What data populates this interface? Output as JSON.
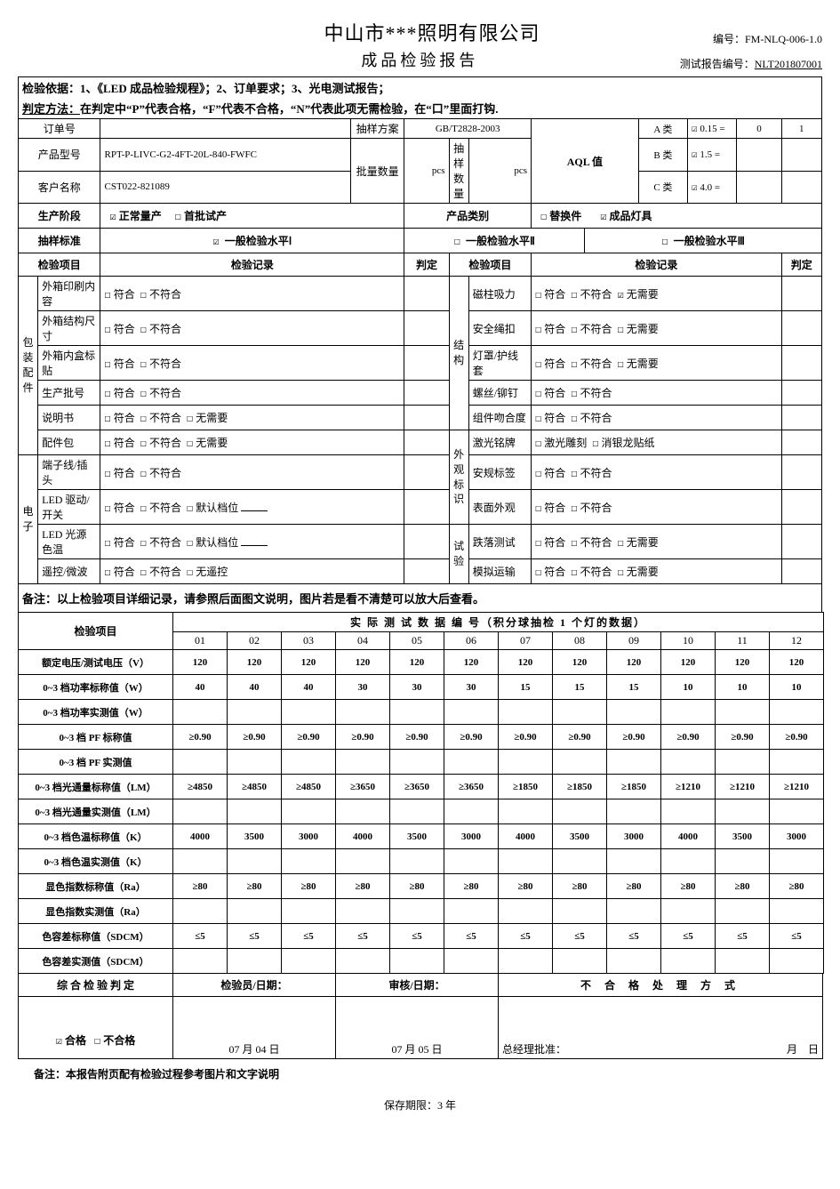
{
  "header": {
    "company": "中山市***照明有限公司",
    "title": "成品检验报告",
    "doc_no_label": "编号：",
    "doc_no": "FM-NLQ-006-1.0",
    "report_no_label": "测试报告编号：",
    "report_no": "NLT201807001"
  },
  "basis": {
    "label": "检验依据：",
    "text": "1、《LED 成品检验规程》；2、订单要求；3、光电测试报告；"
  },
  "method": {
    "label": "判定方法：",
    "text": "在判定中“P”代表合格，“F”代表不合格，“N”代表此项无需检验，在“口”里面打钩."
  },
  "info": {
    "order_no_label": "订单号",
    "order_no": "",
    "sampling_plan_label": "抽样方案",
    "sampling_plan": "GB/T2828-2003",
    "aql_label": "AQL 值",
    "a_label": "A 类",
    "a_val": "0.15 =",
    "a_r1": "0",
    "a_r2": "1",
    "b_label": "B 类",
    "b_val": "1.5 =",
    "c_label": "C 类",
    "c_val": "4.0 =",
    "model_label": "产品型号",
    "model": "RPT-P-LIVC-G2-4FT-20L-840-FWFC",
    "batch_qty_label": "批量数量",
    "batch_qty_unit": "pcs",
    "sample_qty_label": "抽样数量",
    "sample_qty_unit": "pcs",
    "customer_label": "客户名称",
    "customer": "CST022-821089"
  },
  "phase": {
    "label": "生产阶段",
    "opt1": "正常量产",
    "opt2": "首批试产",
    "cat_label": "产品类别",
    "opt3": "替换件",
    "opt4": "成品灯具"
  },
  "std": {
    "label": "抽样标准",
    "opt1": "一般检验水平Ⅰ",
    "opt2": "一般检验水平Ⅱ",
    "opt3": "一般检验水平Ⅲ"
  },
  "col_hdr": {
    "item": "检验项目",
    "record": "检验记录",
    "judge": "判定"
  },
  "chk": {
    "conform": "符合",
    "nonconform": "不符合",
    "noneed": "无需要",
    "default": "默认档位",
    "noremote": "无遥控",
    "laser": "激光雕刻",
    "silver": "消银龙贴纸"
  },
  "groups": {
    "pkg": "包装配件",
    "elec": "电子",
    "struct": "结构",
    "appr": "外观标识",
    "test": "试验"
  },
  "left_items": [
    {
      "name": "外箱印刷内容",
      "opts": [
        "conform",
        "nonconform"
      ]
    },
    {
      "name": "外箱结构尺寸",
      "opts": [
        "conform",
        "nonconform"
      ]
    },
    {
      "name": "外箱内盒标贴",
      "opts": [
        "conform",
        "nonconform"
      ]
    },
    {
      "name": "生产批号",
      "opts": [
        "conform",
        "nonconform"
      ]
    },
    {
      "name": "说明书",
      "opts": [
        "conform",
        "nonconform",
        "noneed"
      ]
    },
    {
      "name": "配件包",
      "opts": [
        "conform",
        "nonconform",
        "noneed"
      ]
    },
    {
      "name": "端子线/插头",
      "opts": [
        "conform",
        "nonconform"
      ]
    },
    {
      "name": "LED 驱动/开关",
      "opts": [
        "conform",
        "nonconform",
        "default"
      ]
    },
    {
      "name": "LED 光源色温",
      "opts": [
        "conform",
        "nonconform",
        "default"
      ]
    },
    {
      "name": "遥控/微波",
      "opts": [
        "conform",
        "nonconform",
        "noremote"
      ]
    }
  ],
  "right_items": [
    {
      "name": "磁柱吸力",
      "opts": [
        "conform",
        "nonconform",
        "noneed"
      ],
      "checked": 2
    },
    {
      "name": "安全绳扣",
      "opts": [
        "conform",
        "nonconform",
        "noneed"
      ]
    },
    {
      "name": "灯罩/护线套",
      "opts": [
        "conform",
        "nonconform",
        "noneed"
      ]
    },
    {
      "name": "螺丝/铆钉",
      "opts": [
        "conform",
        "nonconform"
      ]
    },
    {
      "name": "组件吻合度",
      "opts": [
        "conform",
        "nonconform"
      ]
    },
    {
      "name": "激光铭牌",
      "opts": [
        "laser",
        "silver"
      ]
    },
    {
      "name": "安规标签",
      "opts": [
        "conform",
        "nonconform"
      ]
    },
    {
      "name": "表面外观",
      "opts": [
        "conform",
        "nonconform"
      ]
    },
    {
      "name": "跌落测试",
      "opts": [
        "conform",
        "nonconform",
        "noneed"
      ]
    },
    {
      "name": "模拟运输",
      "opts": [
        "conform",
        "nonconform",
        "noneed"
      ]
    }
  ],
  "note_mid": "备注：以上检验项目详细记录，请参照后面图文说明，图片若是看不清楚可以放大后查看。",
  "measure": {
    "item_label": "检验项目",
    "title": "实 际 测 试 数 据 编 号（积分球抽检 1 个灯的数据）",
    "cols": [
      "01",
      "02",
      "03",
      "04",
      "05",
      "06",
      "07",
      "08",
      "09",
      "10",
      "11",
      "12"
    ],
    "rows": [
      {
        "label": "额定电压/测试电压（V）",
        "v": [
          "120",
          "120",
          "120",
          "120",
          "120",
          "120",
          "120",
          "120",
          "120",
          "120",
          "120",
          "120"
        ]
      },
      {
        "label": "0~3 档功率标称值（W）",
        "v": [
          "40",
          "40",
          "40",
          "30",
          "30",
          "30",
          "15",
          "15",
          "15",
          "10",
          "10",
          "10"
        ]
      },
      {
        "label": "0~3 档功率实测值（W）",
        "v": [
          "",
          "",
          "",
          "",
          "",
          "",
          "",
          "",
          "",
          "",
          "",
          ""
        ]
      },
      {
        "label": "0~3 档 PF 标称值",
        "v": [
          "≥0.90",
          "≥0.90",
          "≥0.90",
          "≥0.90",
          "≥0.90",
          "≥0.90",
          "≥0.90",
          "≥0.90",
          "≥0.90",
          "≥0.90",
          "≥0.90",
          "≥0.90"
        ]
      },
      {
        "label": "0~3 档 PF 实测值",
        "v": [
          "",
          "",
          "",
          "",
          "",
          "",
          "",
          "",
          "",
          "",
          "",
          ""
        ]
      },
      {
        "label": "0~3 档光通量标称值（LM）",
        "v": [
          "≥4850",
          "≥4850",
          "≥4850",
          "≥3650",
          "≥3650",
          "≥3650",
          "≥1850",
          "≥1850",
          "≥1850",
          "≥1210",
          "≥1210",
          "≥1210"
        ]
      },
      {
        "label": "0~3 档光通量实测值（LM）",
        "v": [
          "",
          "",
          "",
          "",
          "",
          "",
          "",
          "",
          "",
          "",
          "",
          ""
        ]
      },
      {
        "label": "0~3 档色温标称值（K）",
        "v": [
          "4000",
          "3500",
          "3000",
          "4000",
          "3500",
          "3000",
          "4000",
          "3500",
          "3000",
          "4000",
          "3500",
          "3000"
        ]
      },
      {
        "label": "0~3 档色温实测值（K）",
        "v": [
          "",
          "",
          "",
          "",
          "",
          "",
          "",
          "",
          "",
          "",
          "",
          ""
        ]
      },
      {
        "label": "显色指数标称值（Ra）",
        "v": [
          "≥80",
          "≥80",
          "≥80",
          "≥80",
          "≥80",
          "≥80",
          "≥80",
          "≥80",
          "≥80",
          "≥80",
          "≥80",
          "≥80"
        ]
      },
      {
        "label": "显色指数实测值（Ra）",
        "v": [
          "",
          "",
          "",
          "",
          "",
          "",
          "",
          "",
          "",
          "",
          "",
          ""
        ]
      },
      {
        "label": "色容差标称值（SDCM）",
        "v": [
          "≤5",
          "≤5",
          "≤5",
          "≤5",
          "≤5",
          "≤5",
          "≤5",
          "≤5",
          "≤5",
          "≤5",
          "≤5",
          "≤5"
        ]
      },
      {
        "label": "色容差实测值（SDCM）",
        "v": [
          "",
          "",
          "",
          "",
          "",
          "",
          "",
          "",
          "",
          "",
          "",
          ""
        ]
      }
    ]
  },
  "final": {
    "judge_label": "综 合 检 验 判 定",
    "inspector_label": "检验员/日期：",
    "review_label": "审核/日期：",
    "nc_label": "不 合 格 处 理 方 式",
    "pass": "合格",
    "fail": "不合格",
    "date1": "07 月 04 日",
    "date2": "07 月 05 日",
    "mgr": "总经理批准：",
    "md": "月　日"
  },
  "footer": "备注：本报告附页配有检验过程参考图片和文字说明",
  "retain": "保存期限：3 年",
  "glyph": {
    "box": "☐",
    "chk": "☑"
  }
}
